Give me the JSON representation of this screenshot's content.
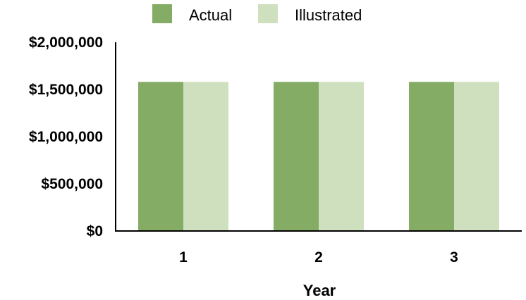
{
  "chart_data": {
    "type": "bar",
    "title": "",
    "xlabel": "Year",
    "ylabel": "",
    "categories": [
      "1",
      "2",
      "3"
    ],
    "series": [
      {
        "name": "Actual",
        "values": [
          1580000,
          1580000,
          1580000
        ],
        "color": "#84ac64"
      },
      {
        "name": "Illustrated",
        "values": [
          1580000,
          1580000,
          1580000
        ],
        "color": "#cfe0be"
      }
    ],
    "ylim": [
      0,
      2000000
    ],
    "yticks": [
      0,
      500000,
      1000000,
      1500000,
      2000000
    ],
    "ytick_labels": [
      "$0",
      "$500,000",
      "$1,000,000",
      "$1,500,000",
      "$2,000,000"
    ],
    "legend_position": "top",
    "grid": false
  }
}
